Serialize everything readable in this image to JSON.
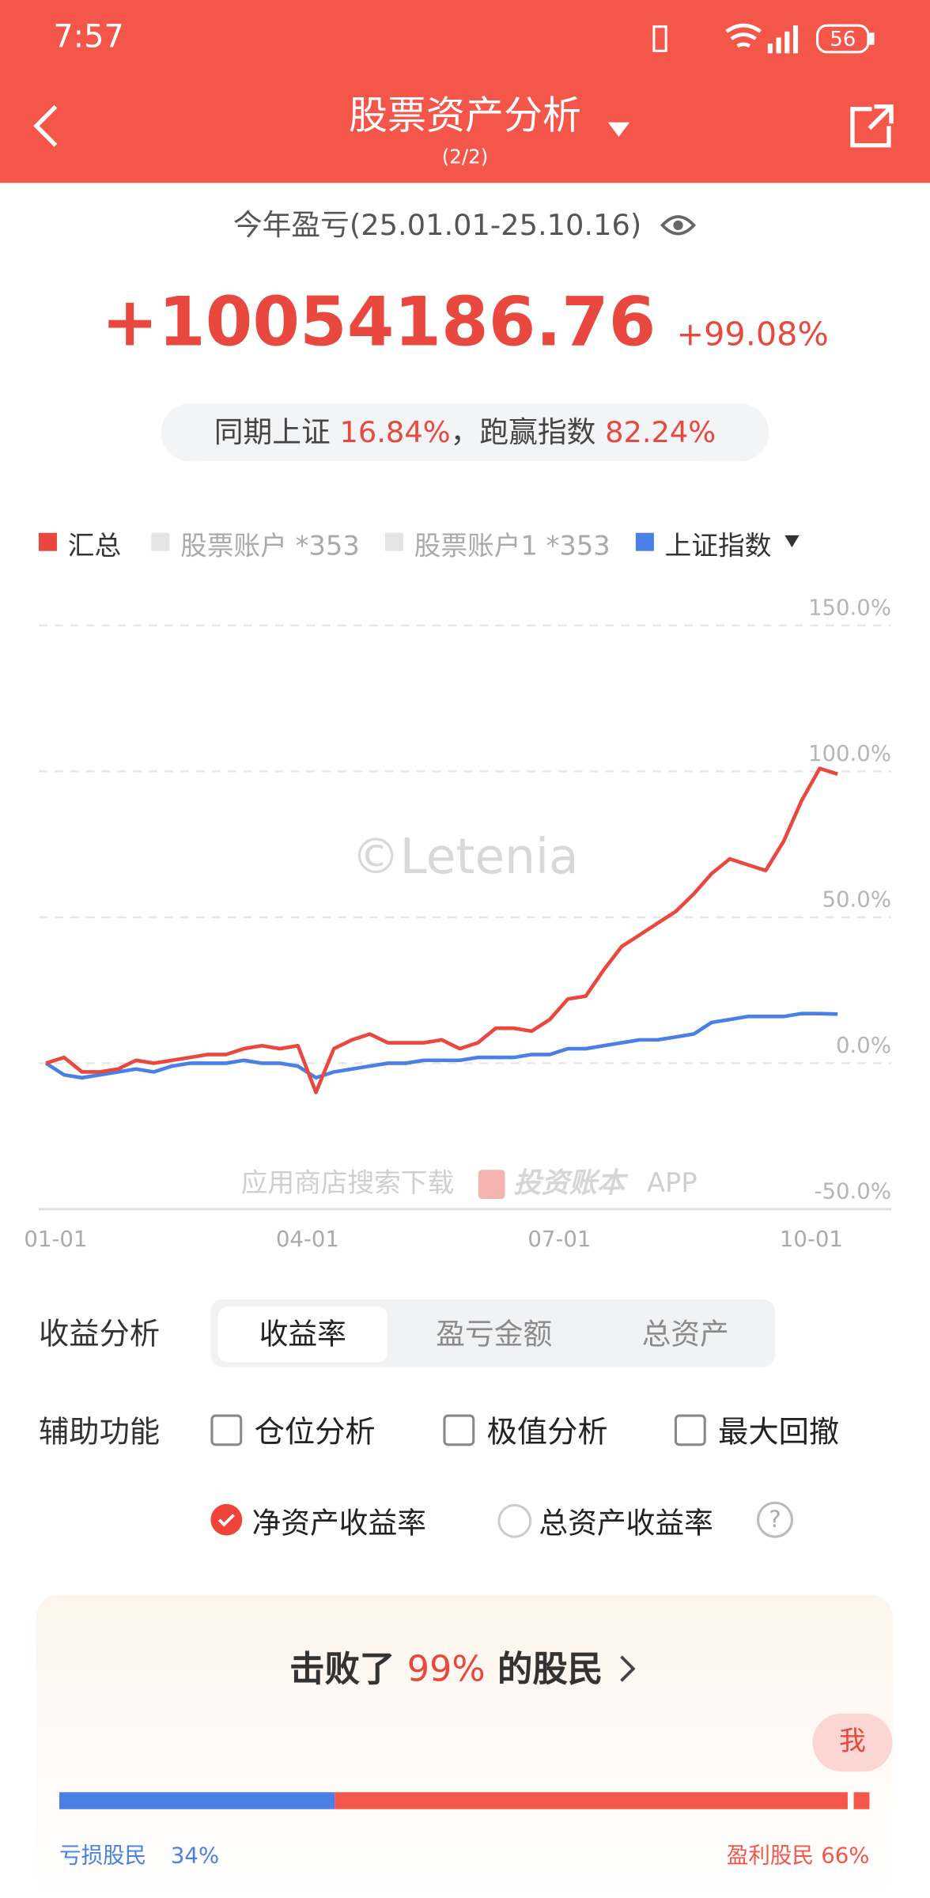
{
  "status_bar": {
    "time": "7:57",
    "battery": "56"
  },
  "header": {
    "title": "股票资产分析",
    "page": "(2/2)"
  },
  "summary": {
    "period": "今年盈亏(25.01.01-25.10.16)",
    "profit": "+10054186.76",
    "return": "+99.08%",
    "compare_prefix": "同期上证",
    "index_return": "16.84%",
    "compare_mid": "，跑赢指数",
    "excess": "82.24%"
  },
  "watermark": "©Letenia",
  "promo": {
    "text": "应用商店搜索下载",
    "brand": "投资账本",
    "suffix": "APP"
  },
  "chart_data": {
    "type": "line",
    "categories": [
      "01-01",
      null,
      null,
      null,
      null,
      null,
      null,
      null,
      null,
      null,
      null,
      null,
      null,
      null,
      "04-01",
      null,
      null,
      null,
      null,
      null,
      null,
      null,
      null,
      null,
      null,
      null,
      null,
      null,
      "07-01",
      null,
      null,
      null,
      null,
      null,
      null,
      null,
      null,
      null,
      null,
      null,
      null,
      null,
      "10-01",
      null,
      null
    ],
    "series": [
      {
        "name": "汇总",
        "color": "#e8483e",
        "values": [
          0,
          2,
          -3,
          -3,
          -2,
          1,
          0,
          1,
          2,
          3,
          3,
          5,
          6,
          5,
          6,
          -10,
          5,
          8,
          10,
          7,
          7,
          7,
          8,
          5,
          7,
          12,
          12,
          11,
          15,
          22,
          23,
          32,
          40,
          44,
          48,
          52,
          58,
          65,
          70,
          68,
          66,
          76,
          90,
          101,
          99.08
        ]
      },
      {
        "name": "上证指数",
        "color": "#4a7fe6",
        "values": [
          0,
          -4,
          -5,
          -4,
          -3,
          -2,
          -3,
          -1,
          0,
          0,
          0,
          1,
          0,
          0,
          -1,
          -5,
          -3,
          -2,
          -1,
          0,
          0,
          1,
          1,
          1,
          2,
          2,
          2,
          3,
          3,
          5,
          5,
          6,
          7,
          8,
          8,
          9,
          10,
          14,
          15,
          16,
          16,
          16,
          17,
          17,
          16.84
        ]
      }
    ],
    "inactive_accounts": [
      "股票账户 *353",
      "股票账户1 *353"
    ],
    "ylim": [
      -50,
      150
    ],
    "yticks": [
      {
        "value": -50,
        "label": "-50.0%"
      },
      {
        "value": 0,
        "label": "0.0%"
      },
      {
        "value": 50,
        "label": "50.0%"
      },
      {
        "value": 100,
        "label": "100.0%"
      },
      {
        "value": 150,
        "label": "150.0%"
      }
    ],
    "grid": true
  },
  "controls": {
    "analysis_label": "收益分析",
    "tabs": [
      "收益率",
      "盈亏金额",
      "总资产"
    ],
    "selected_tab": 0,
    "aux_label": "辅助功能",
    "checkboxes": [
      "仓位分析",
      "极值分析",
      "最大回撤"
    ],
    "radios": [
      "净资产收益率",
      "总资产收益率"
    ],
    "selected_radio": 0,
    "help": "?"
  },
  "ranking": {
    "prefix": "击败了",
    "percent": "99%",
    "suffix": "的股民",
    "me": "我",
    "categories": [
      "亏损股民",
      "盈利股民"
    ],
    "values": [
      34,
      66
    ],
    "value_labels": [
      "34%",
      "66%"
    ],
    "colors": [
      "#4a7fe6",
      "#f5564a"
    ]
  }
}
